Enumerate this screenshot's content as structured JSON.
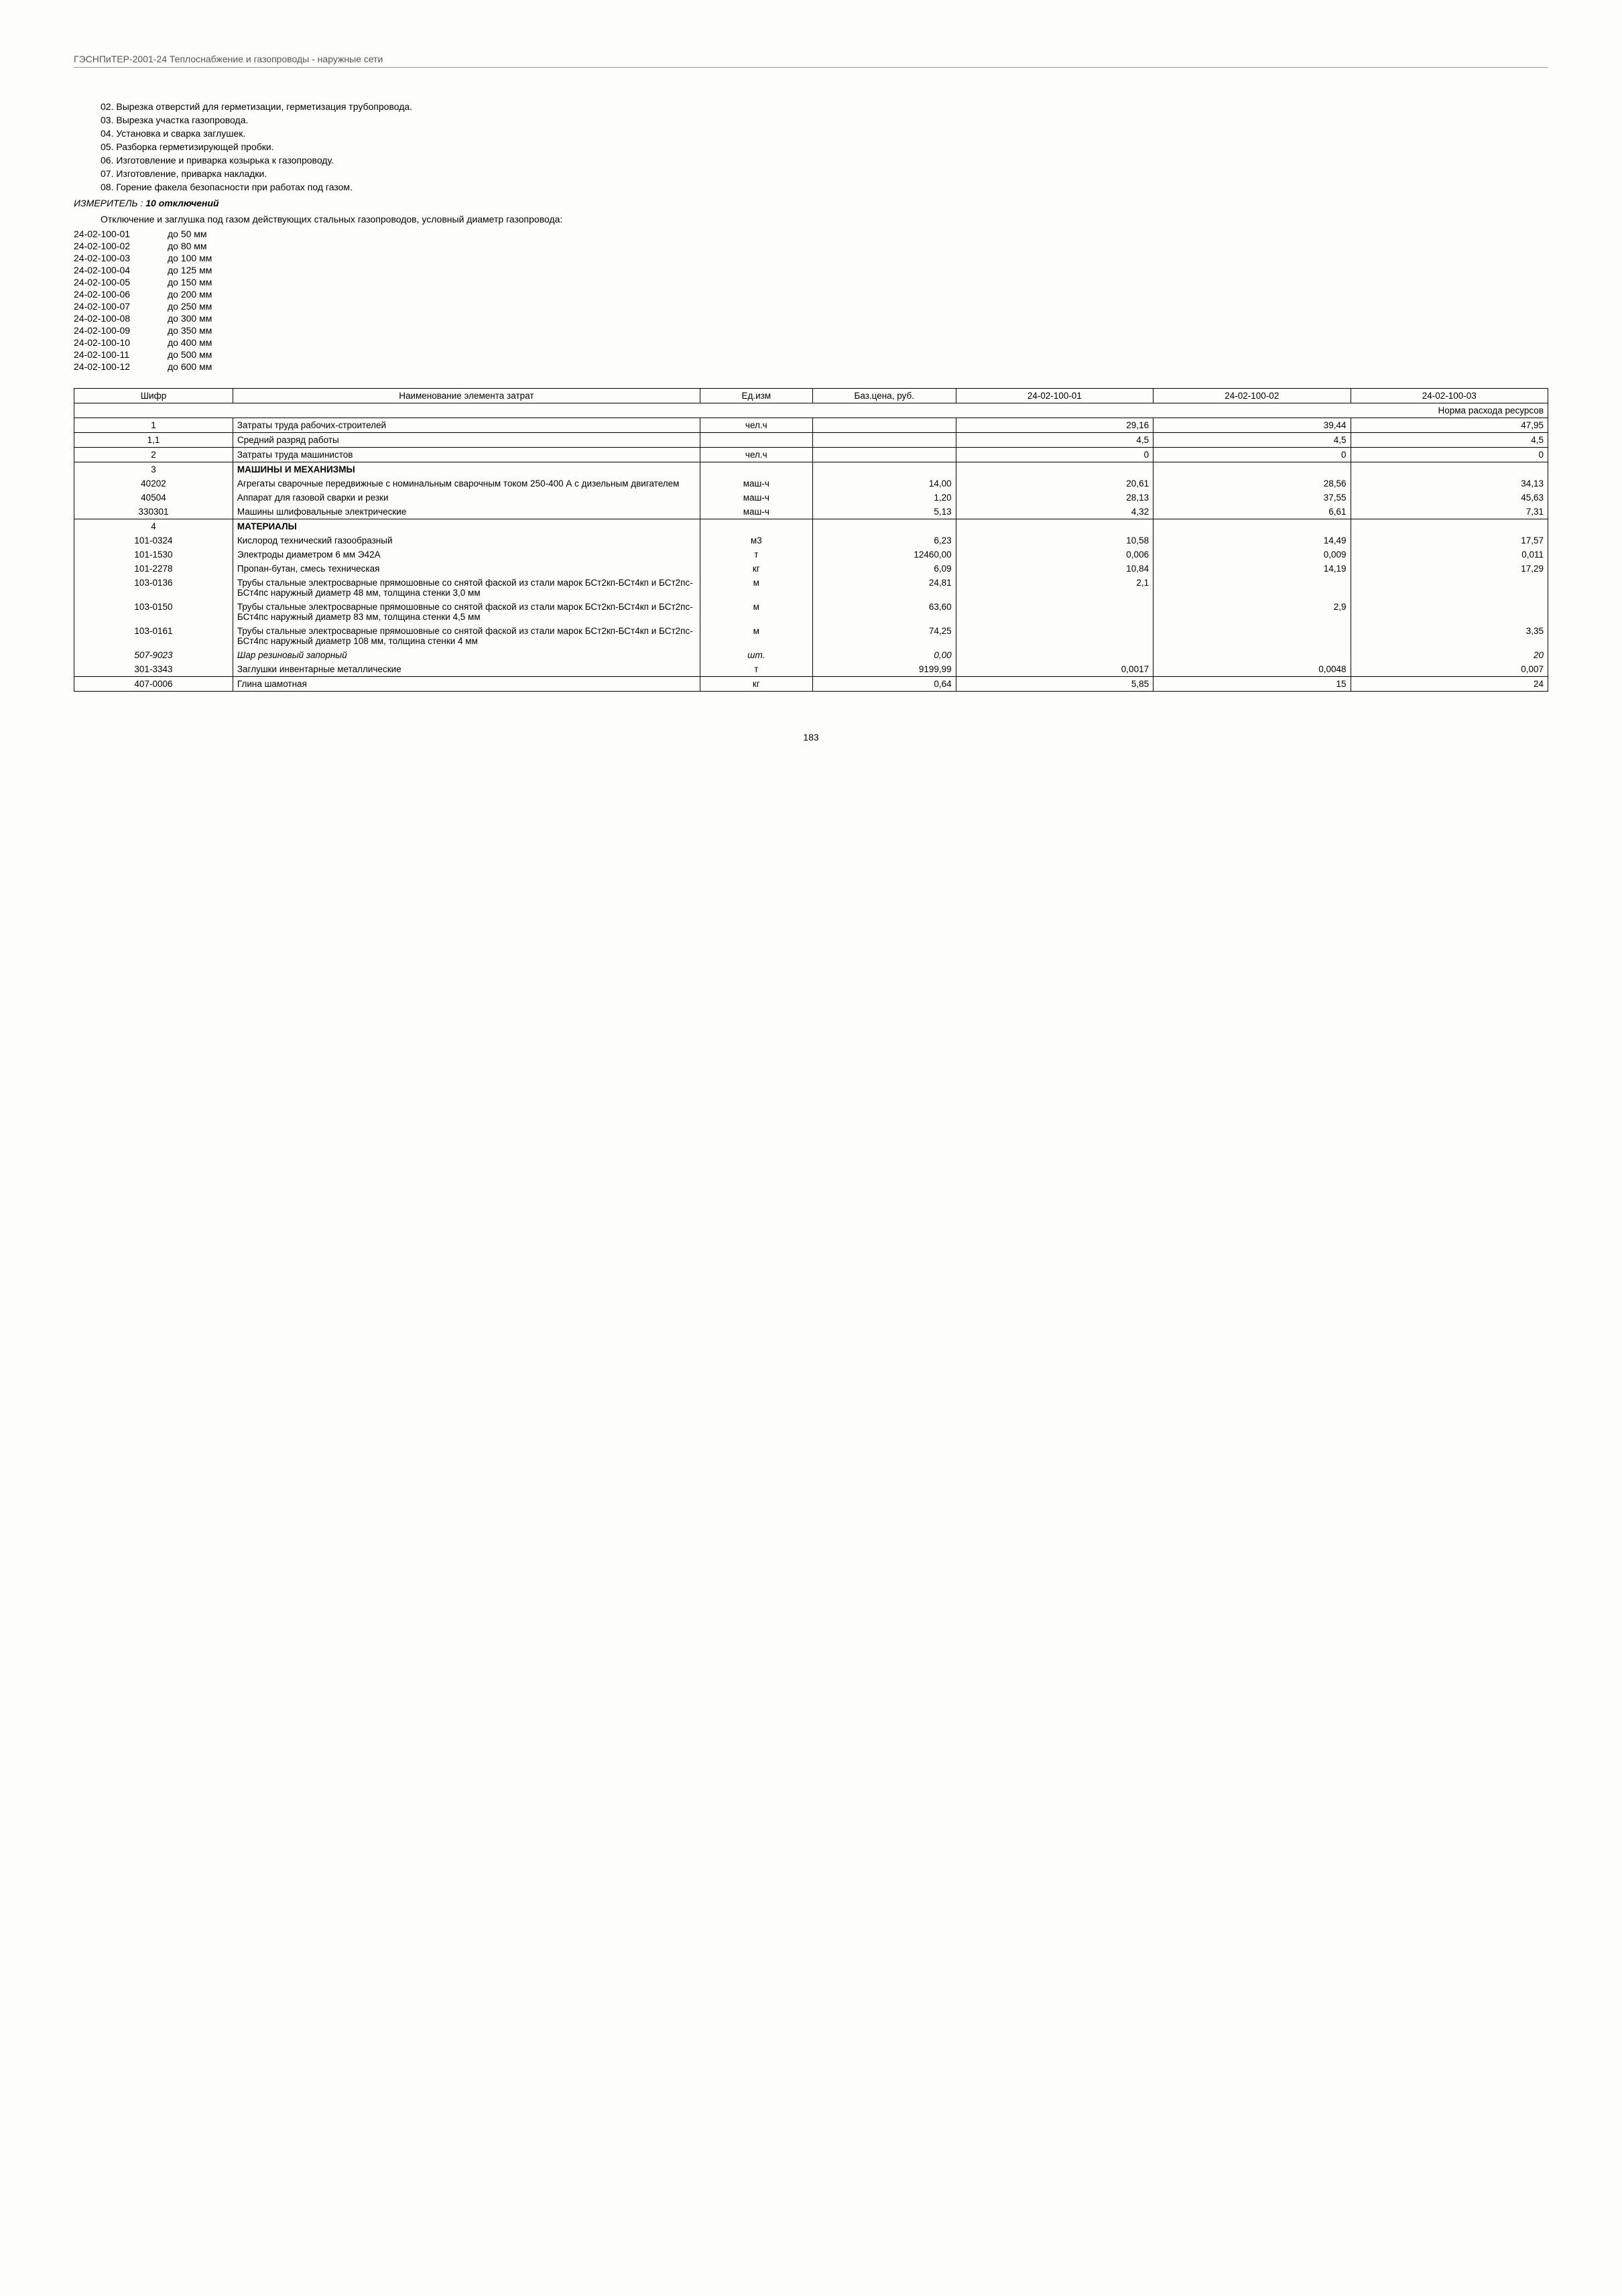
{
  "header": "ГЭСНПиТЕР-2001-24 Теплоснабжение и газопроводы - наружные сети",
  "ops": [
    "02. Вырезка отверстий для герметизации, герметизация трубопровода.",
    "03. Вырезка участка газопровода.",
    "04. Установка и сварка заглушек.",
    "05. Разборка герметизирующей пробки.",
    "06. Изготовление и приварка козырька к газопроводу.",
    "07. Изготовление, приварка накладки.",
    "08. Горение факела безопасности при работах под газом."
  ],
  "izm_label": "ИЗМЕРИТЕЛЬ :",
  "izm_value": "10 отключений",
  "desc": "Отключение и заглушка под газом действующих стальных газопроводов, условный диаметр газопровода:",
  "codes": [
    {
      "id": "24-02-100-01",
      "label": "до 50 мм"
    },
    {
      "id": "24-02-100-02",
      "label": "до 80 мм"
    },
    {
      "id": "24-02-100-03",
      "label": "до 100 мм"
    },
    {
      "id": "24-02-100-04",
      "label": "до 125 мм"
    },
    {
      "id": "24-02-100-05",
      "label": "до 150 мм"
    },
    {
      "id": "24-02-100-06",
      "label": "до 200 мм"
    },
    {
      "id": "24-02-100-07",
      "label": "до 250 мм"
    },
    {
      "id": "24-02-100-08",
      "label": "до 300 мм"
    },
    {
      "id": "24-02-100-09",
      "label": "до 350 мм"
    },
    {
      "id": "24-02-100-10",
      "label": "до 400 мм"
    },
    {
      "id": "24-02-100-11",
      "label": "до 500 мм"
    },
    {
      "id": "24-02-100-12",
      "label": "до 600 мм"
    }
  ],
  "table": {
    "headers": [
      "Шифр",
      "Наименование элемента затрат",
      "Ед.изм",
      "Баз.цена, руб.",
      "24-02-100-01",
      "24-02-100-02",
      "24-02-100-03"
    ],
    "norma": "Норма расхода ресурсов",
    "rows": [
      {
        "code": "1",
        "name": "Затраты труда рабочих-строителей",
        "unit": "чел.ч",
        "price": "",
        "v1": "29,16",
        "v2": "39,44",
        "v3": "47,95",
        "group": "g1"
      },
      {
        "code": "1,1",
        "name": "Средний разряд работы",
        "unit": "",
        "price": "",
        "v1": "4,5",
        "v2": "4,5",
        "v3": "4,5",
        "group": "g1"
      },
      {
        "code": "2",
        "name": "Затраты труда машинистов",
        "unit": "чел.ч",
        "price": "",
        "v1": "0",
        "v2": "0",
        "v3": "0",
        "group": "g2"
      },
      {
        "code": "3",
        "name": "МАШИНЫ И МЕХАНИЗМЫ",
        "bold": true,
        "unit": "",
        "price": "",
        "v1": "",
        "v2": "",
        "v3": "",
        "group": "g3top"
      },
      {
        "code": "40202",
        "name": "Агрегаты сварочные передвижные с номинальным сварочным током 250-400 А с дизельным двигателем",
        "unit": "маш-ч",
        "price": "14,00",
        "v1": "20,61",
        "v2": "28,56",
        "v3": "34,13",
        "group": "g3mid"
      },
      {
        "code": "40504",
        "name": "Аппарат для газовой сварки и резки",
        "unit": "маш-ч",
        "price": "1,20",
        "v1": "28,13",
        "v2": "37,55",
        "v3": "45,63",
        "group": "g3mid"
      },
      {
        "code": "330301",
        "name": "Машины шлифовальные электрические",
        "unit": "маш-ч",
        "price": "5,13",
        "v1": "4,32",
        "v2": "6,61",
        "v3": "7,31",
        "group": "g3bot"
      },
      {
        "code": "4",
        "name": "МАТЕРИАЛЫ",
        "bold": true,
        "unit": "",
        "price": "",
        "v1": "",
        "v2": "",
        "v3": "",
        "group": "g4top"
      },
      {
        "code": "101-0324",
        "name": "Кислород технический газообразный",
        "unit": "м3",
        "price": "6,23",
        "v1": "10,58",
        "v2": "14,49",
        "v3": "17,57",
        "group": "g4mid"
      },
      {
        "code": "101-1530",
        "name": "Электроды диаметром 6 мм Э42А",
        "unit": "т",
        "price": "12460,00",
        "v1": "0,006",
        "v2": "0,009",
        "v3": "0,011",
        "group": "g4mid"
      },
      {
        "code": "101-2278",
        "name": "Пропан-бутан, смесь техническая",
        "unit": "кг",
        "price": "6,09",
        "v1": "10,84",
        "v2": "14,19",
        "v3": "17,29",
        "group": "g4mid"
      },
      {
        "code": "103-0136",
        "name": "Трубы стальные электросварные прямошовные со снятой фаской из стали марок БСт2кп-БСт4кп и БСт2пс-БСт4пс наружный диаметр 48 мм, толщина стенки 3,0 мм",
        "unit": "м",
        "price": "24,81",
        "v1": "2,1",
        "v2": "",
        "v3": "",
        "group": "g4mid"
      },
      {
        "code": "103-0150",
        "name": "Трубы стальные электросварные прямошовные со снятой фаской из стали марок БСт2кп-БСт4кп и БСт2пс-БСт4пс наружный диаметр 83 мм, толщина стенки 4,5 мм",
        "unit": "м",
        "price": "63,60",
        "v1": "",
        "v2": "2,9",
        "v3": "",
        "group": "g4mid"
      },
      {
        "code": "103-0161",
        "name": "Трубы стальные электросварные прямошовные со снятой фаской из стали марок БСт2кп-БСт4кп и БСт2пс-БСт4пс наружный диаметр 108 мм, толщина стенки 4 мм",
        "unit": "м",
        "price": "74,25",
        "v1": "",
        "v2": "",
        "v3": "3,35",
        "group": "g4mid"
      },
      {
        "code": "507-9023",
        "name": "Шар резиновый запорный",
        "italic": true,
        "unit": "шт.",
        "unitItalic": true,
        "price": "0,00",
        "priceItalic": true,
        "v1": "",
        "v2": "",
        "v3": "20",
        "v3Italic": true,
        "group": "g4mid"
      },
      {
        "code": "301-3343",
        "name": "Заглушки инвентарные металлические",
        "unit": "т",
        "price": "9199,99",
        "v1": "0,0017",
        "v2": "0,0048",
        "v3": "0,007",
        "group": "g4bot"
      },
      {
        "code": "407-0006",
        "name": "Глина шамотная",
        "unit": "кг",
        "price": "0,64",
        "v1": "5,85",
        "v2": "15",
        "v3": "24",
        "group": "g5"
      }
    ]
  },
  "page": "183"
}
